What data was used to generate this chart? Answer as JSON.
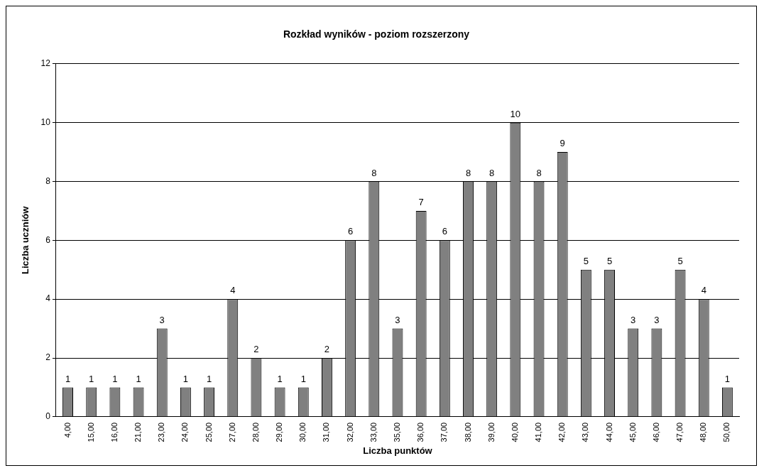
{
  "chart_data": {
    "type": "bar",
    "title": "Rozkład wyników - poziom rozszerzony",
    "xlabel": "Liczba punktów",
    "ylabel": "Liczba uczniów",
    "categories": [
      "4,00",
      "15,00",
      "16,00",
      "21,00",
      "23,00",
      "24,00",
      "25,00",
      "27,00",
      "28,00",
      "29,00",
      "30,00",
      "31,00",
      "32,00",
      "33,00",
      "35,00",
      "36,00",
      "37,00",
      "38,00",
      "39,00",
      "40,00",
      "41,00",
      "42,00",
      "43,00",
      "44,00",
      "45,00",
      "46,00",
      "47,00",
      "48,00",
      "50,00"
    ],
    "values": [
      1,
      1,
      1,
      1,
      3,
      1,
      1,
      4,
      2,
      1,
      1,
      2,
      6,
      8,
      3,
      7,
      6,
      8,
      8,
      10,
      8,
      9,
      5,
      5,
      3,
      3,
      5,
      4,
      1
    ],
    "color": "#808080",
    "ylim": [
      0,
      12
    ],
    "yticks": [
      0,
      2,
      4,
      6,
      8,
      10,
      12
    ],
    "grid": "y",
    "data_labels": true,
    "legend": false
  }
}
